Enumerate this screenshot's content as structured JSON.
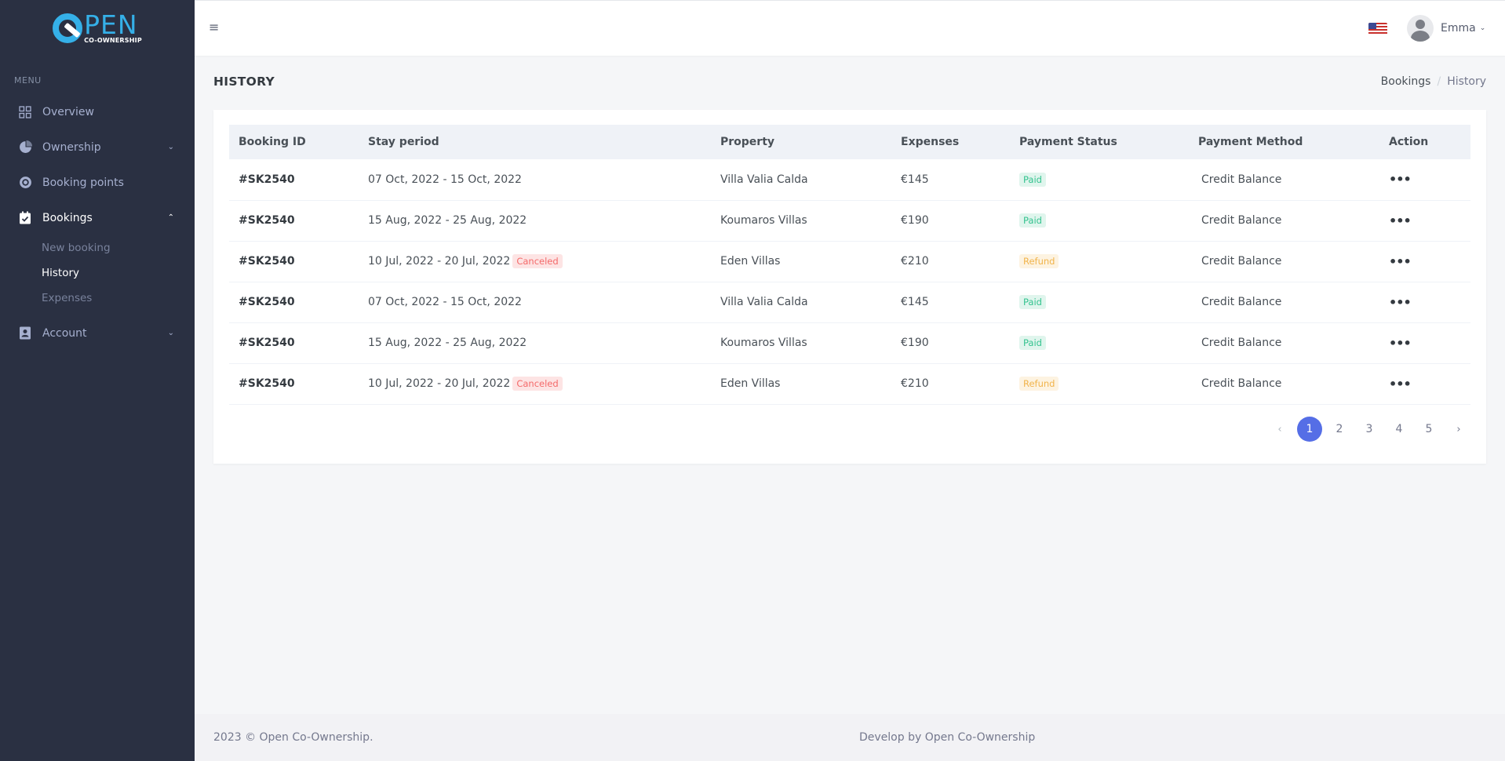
{
  "brand": {
    "logo_main": "PEN",
    "logo_sub": "CO-OWNERSHIP"
  },
  "sidebar": {
    "menu_title": "Menu",
    "items": [
      {
        "label": "Overview",
        "icon": "grid-icon"
      },
      {
        "label": "Ownership",
        "icon": "pie-chart-icon"
      },
      {
        "label": "Booking points",
        "icon": "coins-icon"
      },
      {
        "label": "Bookings",
        "icon": "calendar-check-icon"
      },
      {
        "label": "Account",
        "icon": "contact-book-icon"
      }
    ],
    "bookings_sub": [
      {
        "label": "New booking"
      },
      {
        "label": "History"
      },
      {
        "label": "Expenses"
      }
    ]
  },
  "header": {
    "user_name": "Emma",
    "language": "en-US flag"
  },
  "page": {
    "title": "HISTORY",
    "breadcrumb": [
      "Bookings",
      "/",
      "History"
    ]
  },
  "table": {
    "columns": [
      "Booking ID",
      "Stay period",
      "Property",
      "Expenses",
      "Payment Status",
      "Payment Method",
      "Action"
    ],
    "rows": [
      {
        "id": "#SK2540",
        "period": "07 Oct, 2022 - 15 Oct, 2022",
        "canceled": "",
        "property": "Villa Valia Calda",
        "expenses": "€145",
        "status": "Paid",
        "method": "Credit Balance"
      },
      {
        "id": "#SK2540",
        "period": "15 Aug, 2022 - 25 Aug, 2022",
        "canceled": "",
        "property": "Koumaros Villas",
        "expenses": "€190",
        "status": "Paid",
        "method": "Credit Balance"
      },
      {
        "id": "#SK2540",
        "period": "10 Jul, 2022 - 20 Jul, 2022",
        "canceled": "Canceled",
        "property": "Eden Villas",
        "expenses": "€210",
        "status": "Refund",
        "method": "Credit Balance"
      },
      {
        "id": "#SK2540",
        "period": "07 Oct, 2022 - 15 Oct, 2022",
        "canceled": "",
        "property": "Villa Valia Calda",
        "expenses": "€145",
        "status": "Paid",
        "method": "Credit Balance"
      },
      {
        "id": "#SK2540",
        "period": "15 Aug, 2022 - 25 Aug, 2022",
        "canceled": "",
        "property": "Koumaros Villas",
        "expenses": "€190",
        "status": "Paid",
        "method": "Credit Balance"
      },
      {
        "id": "#SK2540",
        "period": "10 Jul, 2022 - 20 Jul, 2022",
        "canceled": "Canceled",
        "property": "Eden Villas",
        "expenses": "€210",
        "status": "Refund",
        "method": "Credit Balance"
      }
    ],
    "action_glyph": "•••"
  },
  "pagination": {
    "prev": "‹",
    "pages": [
      "1",
      "2",
      "3",
      "4",
      "5"
    ],
    "next": "›",
    "current": "1"
  },
  "footer": {
    "copyright": "2023 © Open Co-Ownership.",
    "credit": "Develop by Open Co-Ownership"
  },
  "colors": {
    "sidebar_bg": "#2a3042",
    "brand_blue": "#35b0e8",
    "primary": "#556ee6",
    "success": "#34c38f",
    "warning": "#f1b44c",
    "danger": "#f46a6a"
  }
}
